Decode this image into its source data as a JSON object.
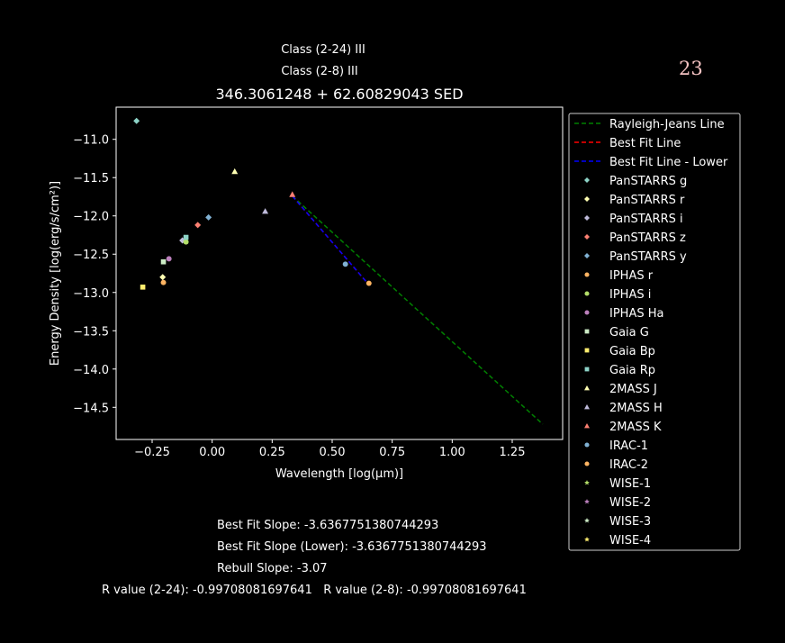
{
  "header": {
    "class_24": "Class (2-24) III",
    "class_28": "Class (2-8) III",
    "corner_number": "23"
  },
  "footer": {
    "best_fit_slope": "Best Fit Slope: -3.6367751380744293",
    "best_fit_slope_lower": "Best Fit Slope (Lower): -3.6367751380744293",
    "rebull_slope": "Rebull Slope: -3.07",
    "r_values": "R value (2-24): -0.99708081697641   R value (2-8): -0.99708081697641"
  },
  "chart_data": {
    "type": "scatter",
    "title": "346.3061248 + 62.60829043 SED",
    "xlabel": "Wavelength [log(μm)]",
    "ylabel": "Energy Density [log(erg/s/cm²)]",
    "xlim": [
      -0.4,
      1.46
    ],
    "ylim": [
      -14.92,
      -10.58
    ],
    "xticks": [
      -0.25,
      0.0,
      0.25,
      0.5,
      0.75,
      1.0,
      1.25
    ],
    "xtick_labels": [
      "−0.25",
      "0.00",
      "0.25",
      "0.50",
      "0.75",
      "1.00",
      "1.25"
    ],
    "yticks": [
      -11.0,
      -11.5,
      -12.0,
      -12.5,
      -13.0,
      -13.5,
      -14.0,
      -14.5
    ],
    "ytick_labels": [
      "−11.0",
      "−11.5",
      "−12.0",
      "−12.5",
      "−13.0",
      "−13.5",
      "−14.0",
      "−14.5"
    ],
    "grid": false,
    "legend_placement": "outside-right",
    "lines": [
      {
        "name": "Rayleigh-Jeans Line",
        "color": "#008000",
        "x": [
          0.334,
          1.377
        ],
        "y": [
          -11.74,
          -14.72
        ]
      },
      {
        "name": "Best Fit Line",
        "color": "#ff0000",
        "x": [
          0.334,
          0.653
        ],
        "y": [
          -11.74,
          -12.9
        ]
      },
      {
        "name": "Best Fit Line - Lower",
        "color": "#0000ff",
        "x": [
          0.334,
          0.653
        ],
        "y": [
          -11.74,
          -12.9
        ]
      }
    ],
    "series": [
      {
        "name": "PanSTARRS g",
        "marker": "diamond",
        "color": "#8dd3c7",
        "x": [
          -0.315
        ],
        "y": [
          -10.76
        ]
      },
      {
        "name": "PanSTARRS r",
        "marker": "diamond",
        "color": "#ffffb3",
        "x": [
          -0.206
        ],
        "y": [
          -12.8
        ]
      },
      {
        "name": "PanSTARRS i",
        "marker": "diamond",
        "color": "#bebada",
        "x": [
          -0.124
        ],
        "y": [
          -12.32
        ]
      },
      {
        "name": "PanSTARRS z",
        "marker": "diamond",
        "color": "#fb8072",
        "x": [
          -0.06
        ],
        "y": [
          -12.12
        ]
      },
      {
        "name": "PanSTARRS y",
        "marker": "diamond",
        "color": "#80b1d3",
        "x": [
          -0.015
        ],
        "y": [
          -12.02
        ]
      },
      {
        "name": "IPHAS r",
        "marker": "circle",
        "color": "#fdb462",
        "x": [
          -0.203
        ],
        "y": [
          -12.87
        ]
      },
      {
        "name": "IPHAS i",
        "marker": "circle",
        "color": "#b3de69",
        "x": [
          -0.109
        ],
        "y": [
          -12.34
        ]
      },
      {
        "name": "IPHAS Ha",
        "marker": "circle",
        "color": "#bc80bd",
        "x": [
          -0.18
        ],
        "y": [
          -12.56
        ]
      },
      {
        "name": "Gaia G",
        "marker": "square",
        "color": "#ccebc5",
        "x": [
          -0.203
        ],
        "y": [
          -12.6
        ]
      },
      {
        "name": "Gaia Bp",
        "marker": "square",
        "color": "#ffed6f",
        "x": [
          -0.289
        ],
        "y": [
          -12.93
        ]
      },
      {
        "name": "Gaia Rp",
        "marker": "square",
        "color": "#8dd3c7",
        "x": [
          -0.109
        ],
        "y": [
          -12.28
        ]
      },
      {
        "name": "2MASS J",
        "marker": "triangle",
        "color": "#ffffb3",
        "x": [
          0.094
        ],
        "y": [
          -11.42
        ]
      },
      {
        "name": "2MASS H",
        "marker": "triangle",
        "color": "#bebada",
        "x": [
          0.221
        ],
        "y": [
          -11.94
        ]
      },
      {
        "name": "2MASS K",
        "marker": "triangle",
        "color": "#fb8072",
        "x": [
          0.334
        ],
        "y": [
          -11.72
        ]
      },
      {
        "name": "IRAC-1",
        "marker": "circle",
        "color": "#80b1d3",
        "x": [
          0.555
        ],
        "y": [
          -12.63
        ]
      },
      {
        "name": "IRAC-2",
        "marker": "circle",
        "color": "#fdb462",
        "x": [
          0.653
        ],
        "y": [
          -12.88
        ]
      },
      {
        "name": "WISE-1",
        "marker": "star",
        "color": "#b3de69",
        "x": [],
        "y": []
      },
      {
        "name": "WISE-2",
        "marker": "star",
        "color": "#bc80bd",
        "x": [],
        "y": []
      },
      {
        "name": "WISE-3",
        "marker": "star",
        "color": "#ccebc5",
        "x": [],
        "y": []
      },
      {
        "name": "WISE-4",
        "marker": "star",
        "color": "#ffed6f",
        "x": [],
        "y": []
      }
    ]
  }
}
